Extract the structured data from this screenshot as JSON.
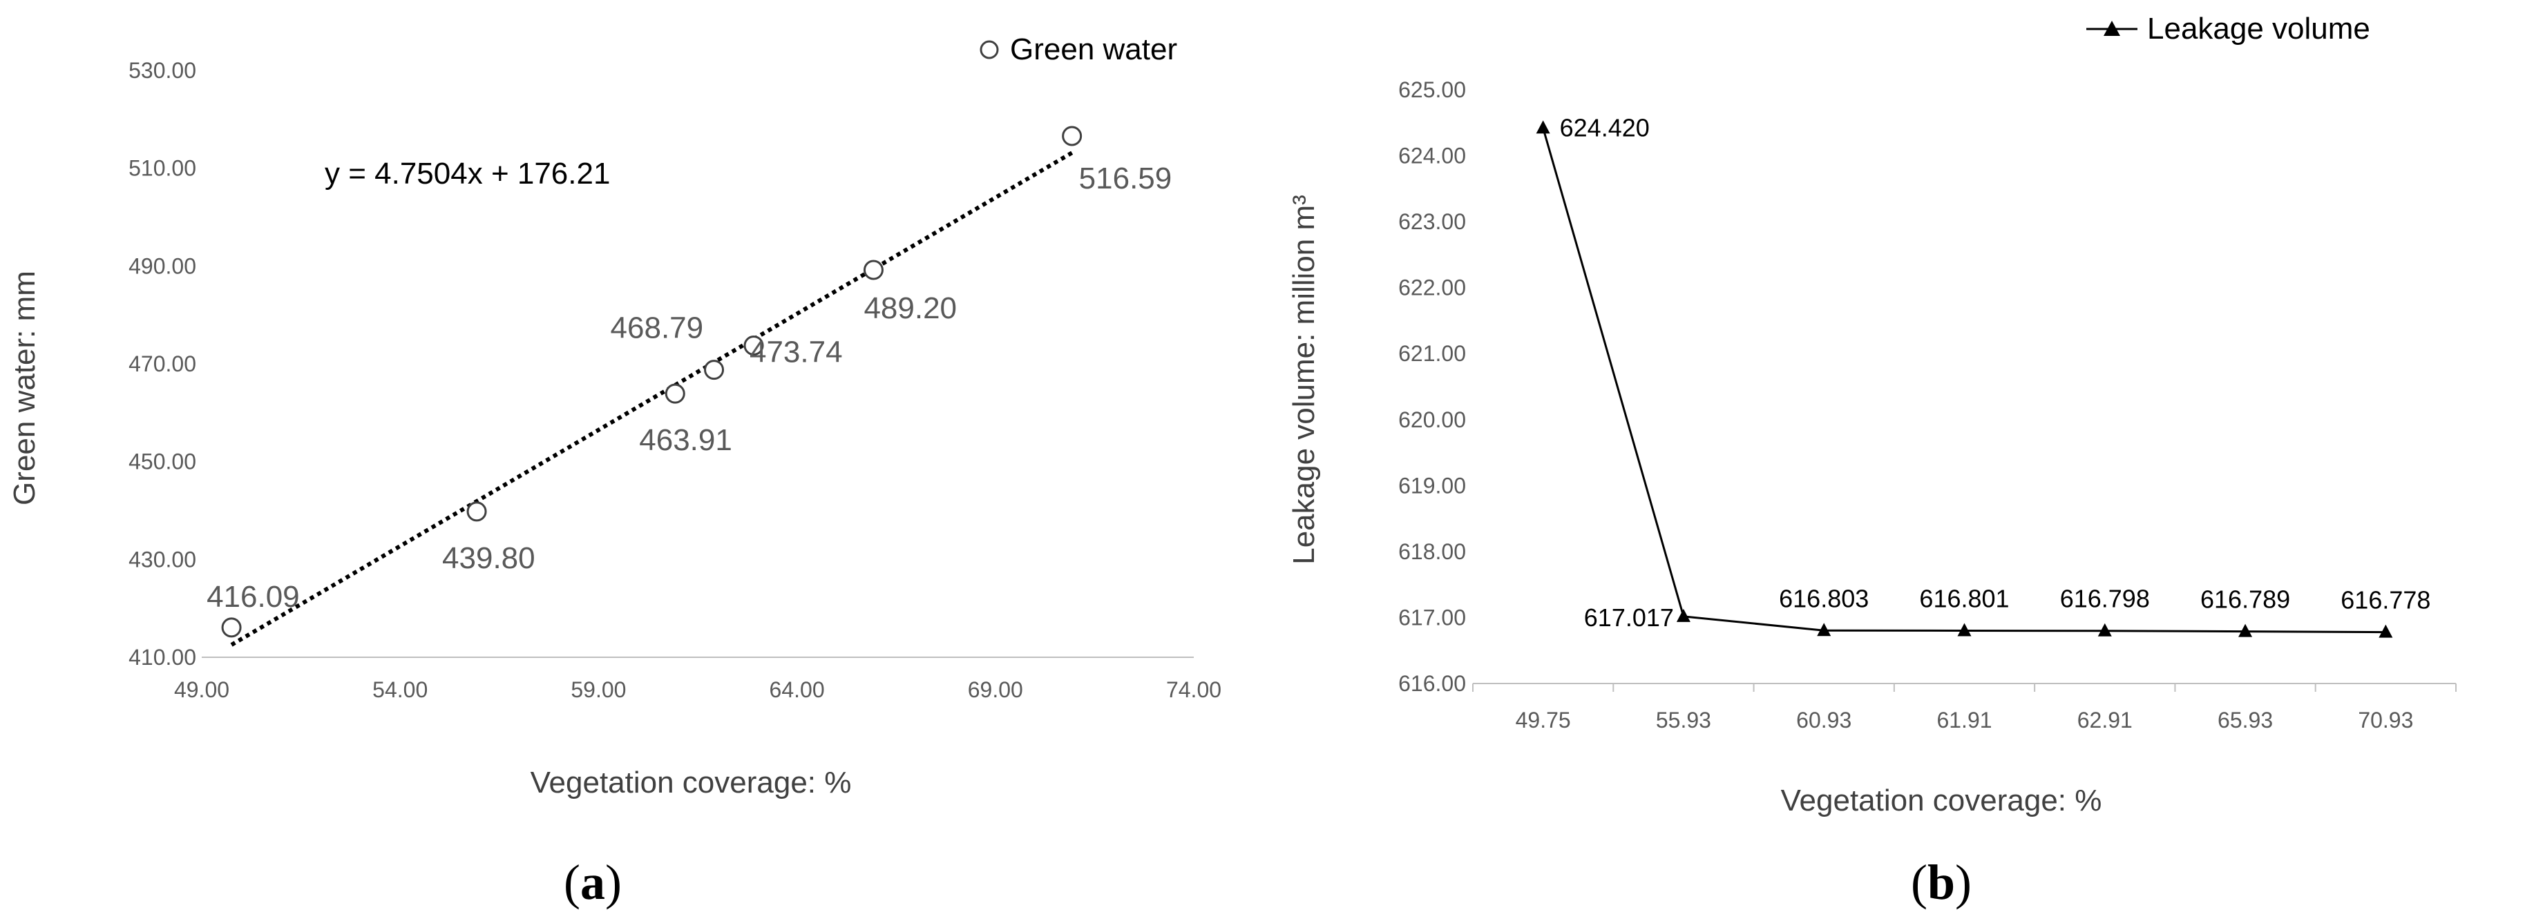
{
  "panels": {
    "a": {
      "label_open": "(",
      "label_letter": "a",
      "label_close": ")"
    },
    "b": {
      "label_open": "(",
      "label_letter": "b",
      "label_close": ")"
    }
  },
  "chart_data": [
    {
      "type": "scatter",
      "title": "",
      "xlabel": "Vegetation coverage: %",
      "ylabel": "Green water: mm",
      "xlim": [
        49.0,
        74.0
      ],
      "ylim": [
        410.0,
        530.0
      ],
      "xticks": [
        "49.00",
        "54.00",
        "59.00",
        "64.00",
        "69.00",
        "74.00"
      ],
      "yticks": [
        "410.00",
        "430.00",
        "450.00",
        "470.00",
        "490.00",
        "510.00",
        "530.00"
      ],
      "legend": {
        "position": "top-right",
        "entries": [
          "Green water"
        ]
      },
      "series": [
        {
          "name": "Green water",
          "marker": "open-circle",
          "x": [
            49.75,
            55.93,
            60.93,
            61.91,
            62.91,
            65.93,
            70.93
          ],
          "y": [
            416.09,
            439.8,
            463.91,
            468.79,
            473.74,
            489.2,
            516.59
          ],
          "labels": [
            "416.09",
            "439.80",
            "463.91",
            "468.79",
            "473.74",
            "489.20",
            "516.59"
          ]
        }
      ],
      "trendline": {
        "style": "dotted",
        "slope": 4.7504,
        "intercept": 176.21,
        "x_range": [
          49.75,
          70.93
        ],
        "equation_text": "y = 4.7504x + 176.21"
      },
      "grid": false
    },
    {
      "type": "line",
      "title": "",
      "xlabel": "Vegetation coverage: %",
      "ylabel": "Leakage  volume: million m³",
      "categories": [
        "49.75",
        "55.93",
        "60.93",
        "61.91",
        "62.91",
        "65.93",
        "70.93"
      ],
      "ylim": [
        616.0,
        625.0
      ],
      "yticks": [
        "616.00",
        "617.00",
        "618.00",
        "619.00",
        "620.00",
        "621.00",
        "622.00",
        "623.00",
        "624.00",
        "625.00"
      ],
      "legend": {
        "position": "top-right",
        "entries": [
          "Leakage volume"
        ]
      },
      "series": [
        {
          "name": "Leakage volume",
          "marker": "filled-triangle",
          "color": "#000000",
          "values": [
            624.42,
            617.017,
            616.803,
            616.801,
            616.798,
            616.789,
            616.778
          ],
          "labels": [
            "624.420",
            "617.017",
            "616.803",
            "616.801",
            "616.798",
            "616.789",
            "616.778"
          ]
        }
      ],
      "grid": false
    }
  ]
}
